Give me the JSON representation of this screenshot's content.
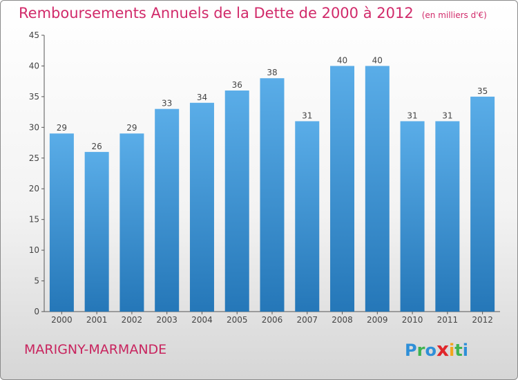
{
  "title": "Remboursements Annuels de la Dette de 2000 à 2012",
  "unit_label": "(en milliers d'€)",
  "commune": "MARIGNY-MARMANDE",
  "logo": {
    "text": "Proxiti",
    "letters": [
      {
        "char": "P",
        "color": "#2e8fd8"
      },
      {
        "char": "r",
        "color": "#3fb34f"
      },
      {
        "char": "o",
        "color": "#2e8fd8"
      },
      {
        "char": "x",
        "color": "#e0262b"
      },
      {
        "char": "i",
        "color": "#f2a51c"
      },
      {
        "char": "t",
        "color": "#3fb34f"
      },
      {
        "char": "i",
        "color": "#2e8fd8"
      }
    ]
  },
  "colors": {
    "title": "#d12a6a",
    "bar_top": "#5aade8",
    "bar_bottom": "#2577b8"
  },
  "chart_data": {
    "type": "bar",
    "title": "Remboursements Annuels de la Dette de 2000 à 2012",
    "xlabel": "",
    "ylabel": "",
    "categories": [
      "2000",
      "2001",
      "2002",
      "2003",
      "2004",
      "2005",
      "2006",
      "2007",
      "2008",
      "2009",
      "2010",
      "2011",
      "2012"
    ],
    "values": [
      29,
      26,
      29,
      33,
      34,
      36,
      38,
      31,
      40,
      40,
      31,
      31,
      35
    ],
    "ylim": [
      0,
      45
    ],
    "yticks": [
      0,
      5,
      10,
      15,
      20,
      25,
      30,
      35,
      40,
      45
    ],
    "grid": false,
    "legend": "none"
  }
}
